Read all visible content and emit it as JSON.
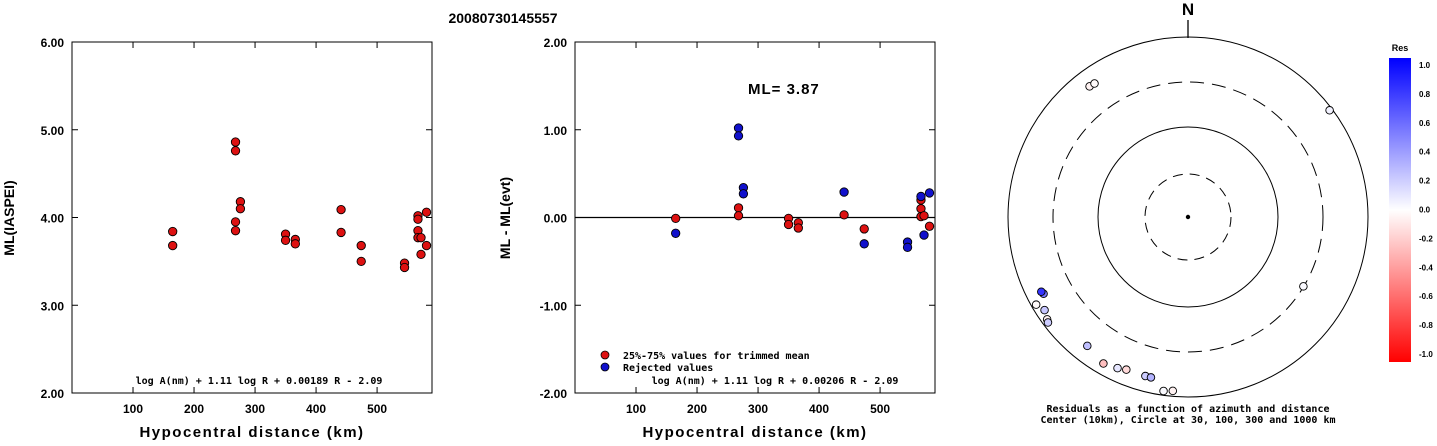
{
  "title": "20080730145557",
  "chart_data": [
    {
      "id": "left",
      "type": "scatter",
      "ylabel": "ML(IASPEI)",
      "xlabel": "Hypocentral distance (km)",
      "xlim": [
        0,
        590
      ],
      "ylim": [
        2.0,
        6.0
      ],
      "xticks": [
        100,
        200,
        300,
        400,
        500
      ],
      "yticks": [
        2.0,
        3.0,
        4.0,
        5.0,
        6.0
      ],
      "ytick_labels": [
        "2.00",
        "3.00",
        "4.00",
        "5.00",
        "6.00"
      ],
      "formula": "log A(nm) + 1.11 log R + 0.00189 R - 2.09",
      "series": [
        {
          "color": "#dd1111",
          "points": [
            [
              165,
              3.84
            ],
            [
              165,
              3.68
            ],
            [
              268,
              4.86
            ],
            [
              268,
              4.76
            ],
            [
              268,
              3.95
            ],
            [
              268,
              3.85
            ],
            [
              276,
              4.18
            ],
            [
              276,
              4.1
            ],
            [
              350,
              3.81
            ],
            [
              350,
              3.74
            ],
            [
              366,
              3.75
            ],
            [
              366,
              3.7
            ],
            [
              441,
              4.09
            ],
            [
              441,
              3.83
            ],
            [
              474,
              3.68
            ],
            [
              474,
              3.5
            ],
            [
              545,
              3.48
            ],
            [
              545,
              3.43
            ],
            [
              567,
              4.02
            ],
            [
              567,
              3.98
            ],
            [
              567,
              3.85
            ],
            [
              567,
              3.77
            ],
            [
              572,
              3.77
            ],
            [
              572,
              3.58
            ],
            [
              581,
              4.06
            ],
            [
              581,
              3.68
            ]
          ]
        }
      ]
    },
    {
      "id": "mid",
      "type": "scatter",
      "ylabel": "ML - ML(evt)",
      "xlabel": "Hypocentral distance (km)",
      "xlim": [
        0,
        590
      ],
      "ylim": [
        -2.0,
        2.0
      ],
      "xticks": [
        100,
        200,
        300,
        400,
        500
      ],
      "yticks": [
        -2.0,
        -1.0,
        0.0,
        1.0,
        2.0
      ],
      "ytick_labels": [
        "-2.00",
        "-1.00",
        "0.00",
        "1.00",
        "2.00"
      ],
      "annotation": "ML= 3.87",
      "formula": "log A(nm) + 1.11 log R + 0.00206 R - 2.09",
      "series": [
        {
          "name": "25%-75% values for trimmed mean",
          "color": "#dd1111",
          "points": [
            [
              165,
              -0.01
            ],
            [
              268,
              0.11
            ],
            [
              268,
              0.02
            ],
            [
              350,
              -0.01
            ],
            [
              350,
              -0.08
            ],
            [
              366,
              -0.06
            ],
            [
              366,
              -0.12
            ],
            [
              441,
              0.03
            ],
            [
              474,
              -0.13
            ],
            [
              567,
              0.2
            ],
            [
              567,
              0.1
            ],
            [
              567,
              0.01
            ],
            [
              572,
              0.02
            ],
            [
              581,
              -0.1
            ]
          ]
        },
        {
          "name": "Rejected values",
          "color": "#1111cc",
          "points": [
            [
              165,
              -0.18
            ],
            [
              268,
              1.02
            ],
            [
              268,
              0.93
            ],
            [
              276,
              0.34
            ],
            [
              276,
              0.27
            ],
            [
              441,
              0.29
            ],
            [
              474,
              -0.3
            ],
            [
              545,
              -0.28
            ],
            [
              545,
              -0.34
            ],
            [
              567,
              0.24
            ],
            [
              572,
              -0.2
            ],
            [
              581,
              0.28
            ]
          ]
        }
      ]
    },
    {
      "id": "polar",
      "type": "scatter",
      "title": "N",
      "caption_lines": [
        "Residuals as a function of azimuth and distance",
        "Center (10km), Circle at 30, 100, 300 and 1000 km"
      ],
      "rings_km": [
        30,
        100,
        300,
        1000
      ],
      "points_az_dist_res": [
        [
          53,
          1000,
          0.05
        ],
        [
          323,
          700,
          -0.05
        ],
        [
          325,
          690,
          -0.02
        ],
        [
          242,
          700,
          0.55
        ],
        [
          243,
          720,
          0.8
        ],
        [
          240,
          950,
          -0.02
        ],
        [
          237,
          850,
          0.22
        ],
        [
          234,
          920,
          -0.05
        ],
        [
          233,
          950,
          0.2
        ],
        [
          218,
          700,
          0.25
        ],
        [
          210,
          810,
          -0.25
        ],
        [
          205,
          760,
          0.1
        ],
        [
          202,
          720,
          -0.15
        ],
        [
          195,
          720,
          0.2
        ],
        [
          193,
          720,
          0.3
        ],
        [
          188,
          960,
          0.02
        ],
        [
          185,
          930,
          -0.05
        ],
        [
          121,
          330,
          0.02
        ]
      ],
      "colorbar": {
        "title": "Res",
        "labels": [
          "1.0",
          "0.8",
          "0.6",
          "0.4",
          "0.2",
          "0.0",
          "-0.2",
          "-0.4",
          "-0.6",
          "-0.8",
          "-1.0"
        ],
        "top_color": "#0000ff",
        "mid_color": "#ffffff",
        "bottom_color": "#ff0000"
      }
    }
  ]
}
